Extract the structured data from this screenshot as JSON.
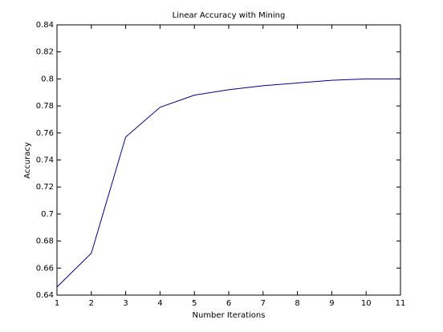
{
  "chart_data": {
    "type": "line",
    "title": "Linear Accuracy with Mining",
    "x_label": "Number Iterations",
    "y_label": "Accuracy",
    "x": [
      1,
      2,
      3,
      4,
      5,
      6,
      7,
      8,
      9,
      10,
      11
    ],
    "series": [
      {
        "color": "#00008b",
        "values": [
          0.646,
          0.671,
          0.757,
          0.779,
          0.788,
          0.792,
          0.795,
          0.797,
          0.799,
          0.8,
          0.8
        ]
      }
    ],
    "xlim": [
      1,
      11
    ],
    "xticks": [
      1,
      2,
      3,
      4,
      5,
      6,
      7,
      8,
      9,
      10,
      11
    ],
    "ylim": [
      0.64,
      0.84
    ],
    "yticks": [
      0.64,
      0.66,
      0.68,
      0.7,
      0.72,
      0.74,
      0.76,
      0.78,
      0.8,
      0.82,
      0.84
    ],
    "grid": false
  }
}
